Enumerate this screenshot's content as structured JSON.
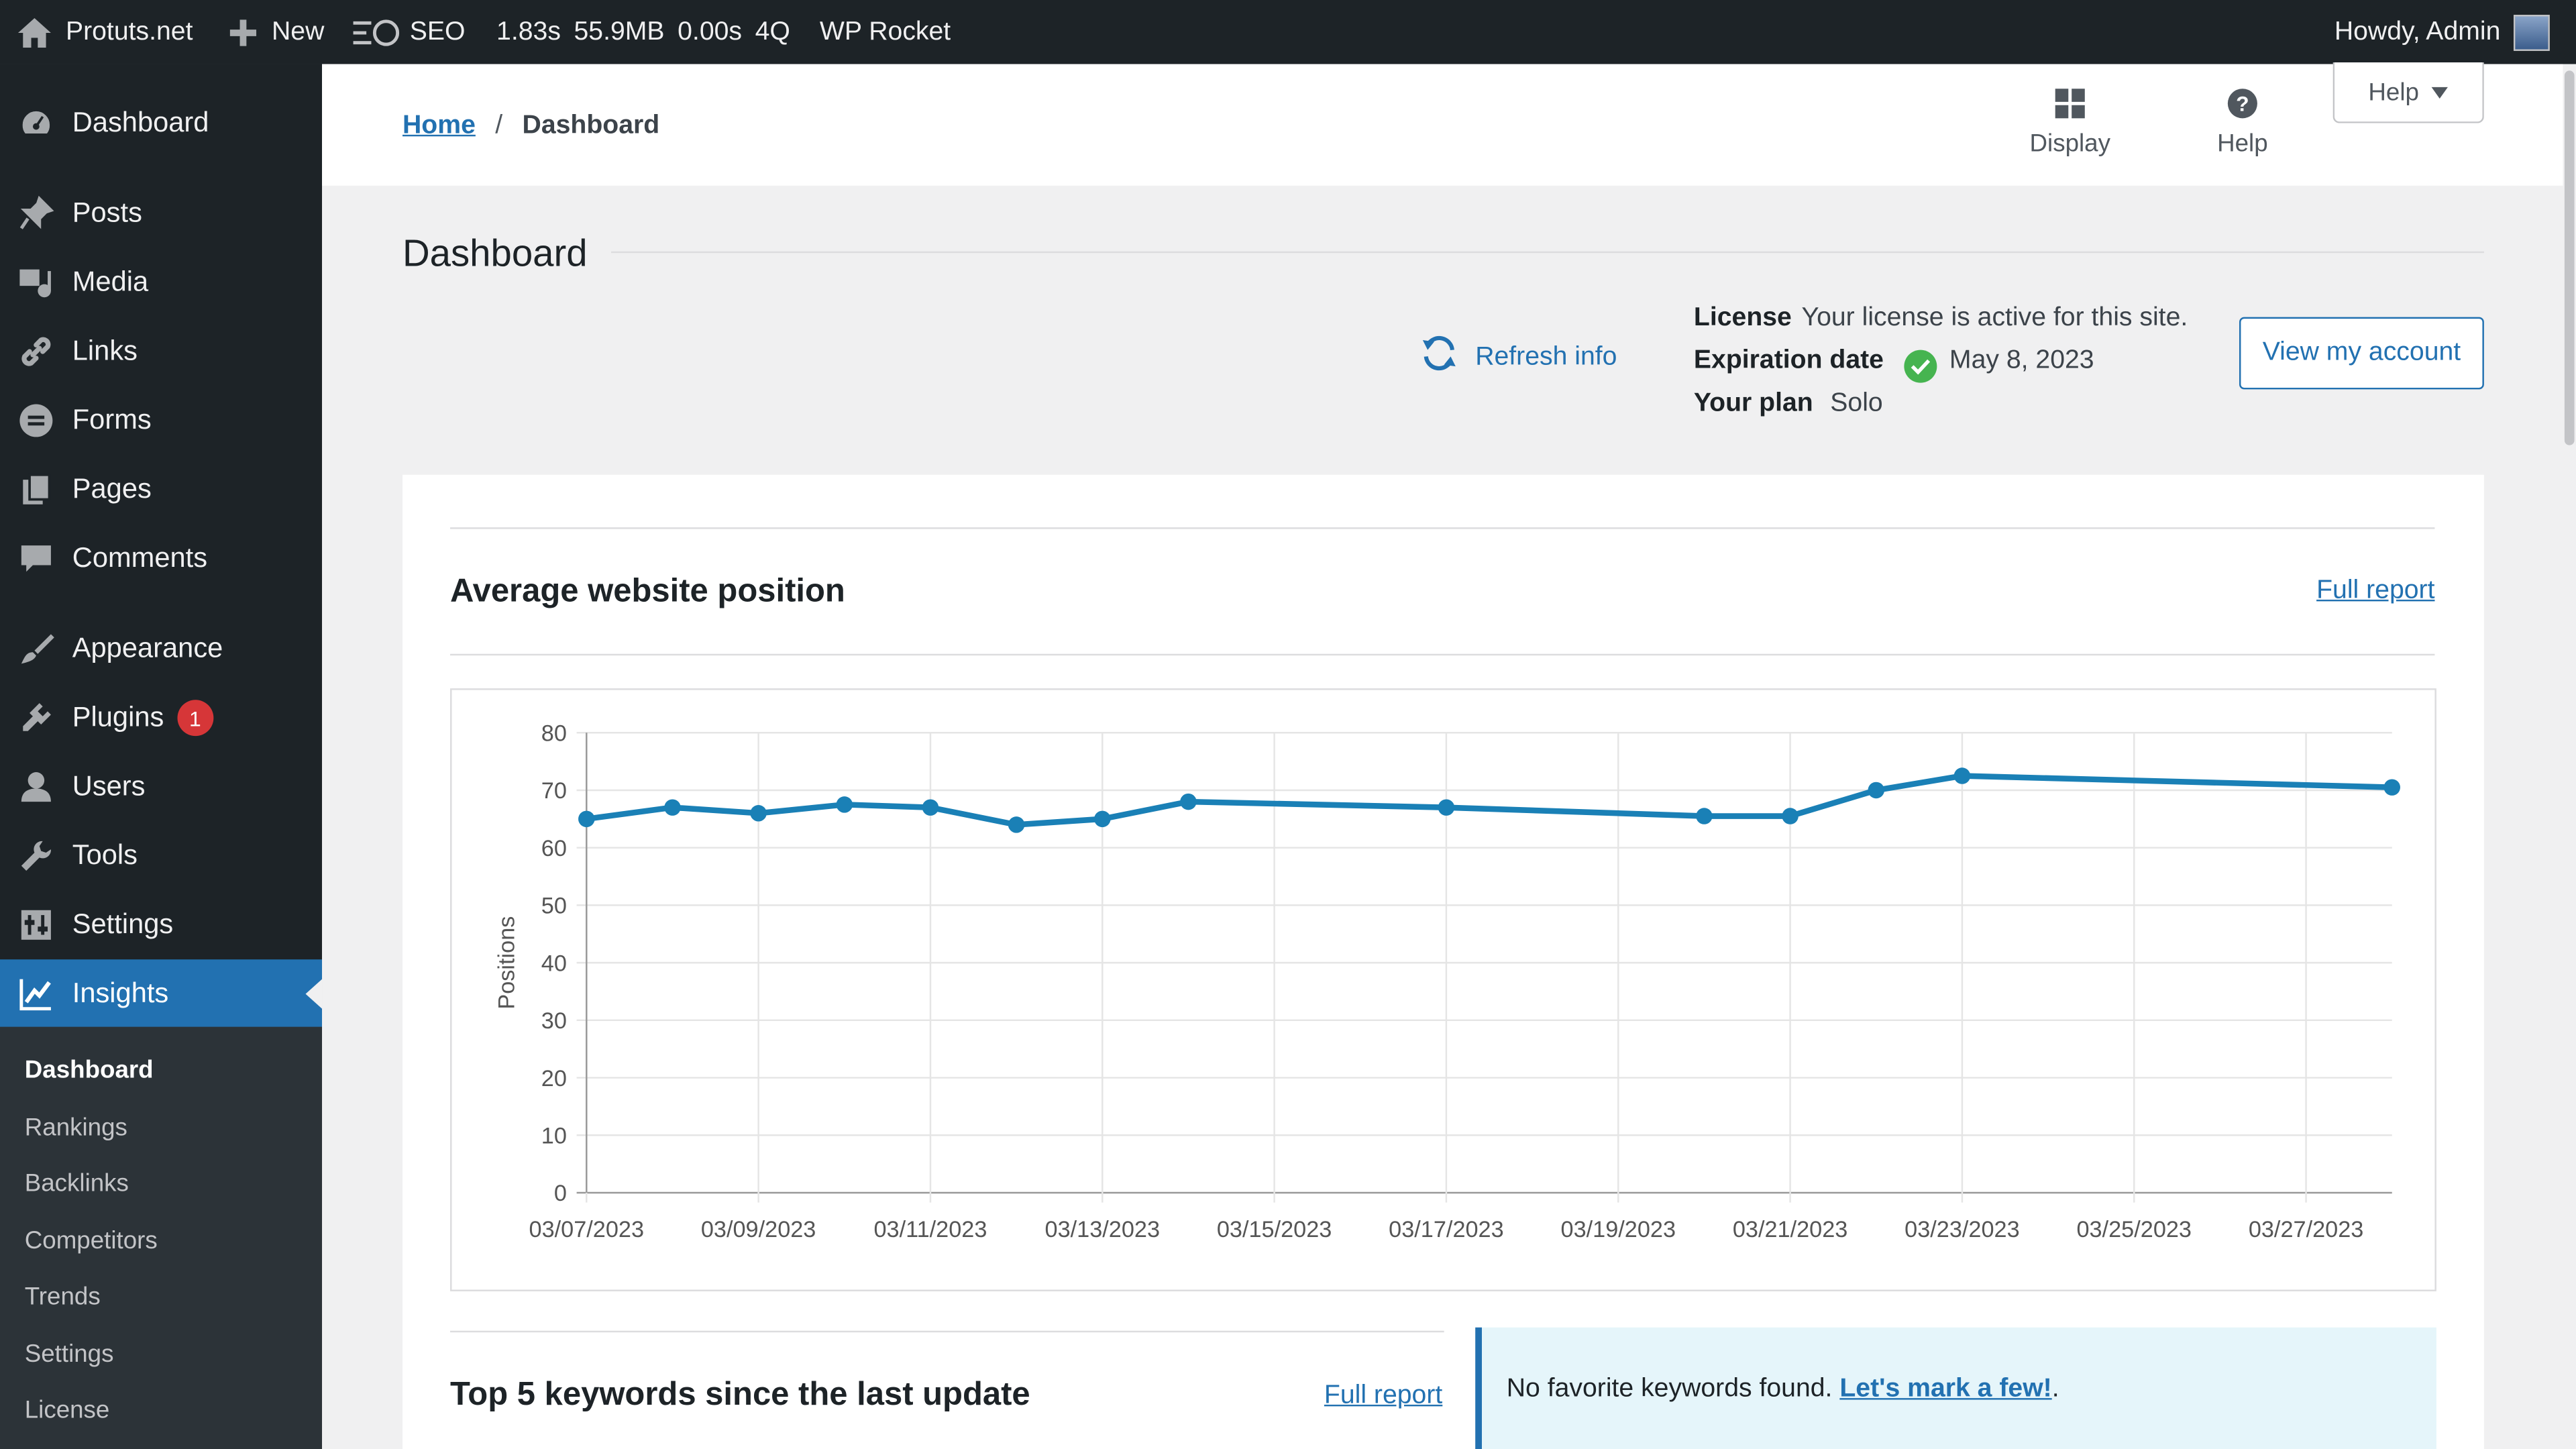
{
  "adminbar": {
    "site_name": "Protuts.net",
    "new_label": "New",
    "seo_label": "SEO",
    "time": "1.83s",
    "memory": "55.9MB",
    "query_time": "0.00s",
    "queries": "4Q",
    "wp_rocket": "WP Rocket",
    "howdy": "Howdy, Admin"
  },
  "sidebar": {
    "items": [
      {
        "label": "Dashboard",
        "icon": "dashboard-icon"
      },
      {
        "label": "Posts",
        "icon": "pin-icon"
      },
      {
        "label": "Media",
        "icon": "media-icon"
      },
      {
        "label": "Links",
        "icon": "link-icon"
      },
      {
        "label": "Forms",
        "icon": "forms-icon"
      },
      {
        "label": "Pages",
        "icon": "pages-icon"
      },
      {
        "label": "Comments",
        "icon": "comment-icon"
      },
      {
        "label": "Appearance",
        "icon": "brush-icon"
      },
      {
        "label": "Plugins",
        "icon": "plugin-icon",
        "badge": "1"
      },
      {
        "label": "Users",
        "icon": "user-icon"
      },
      {
        "label": "Tools",
        "icon": "wrench-icon"
      },
      {
        "label": "Settings",
        "icon": "settings-icon"
      },
      {
        "label": "Insights",
        "icon": "chart-line-icon"
      }
    ],
    "submenu": [
      "Dashboard",
      "Rankings",
      "Backlinks",
      "Competitors",
      "Trends",
      "Settings",
      "License"
    ]
  },
  "header": {
    "breadcrumb_home": "Home",
    "breadcrumb_sep": "/",
    "breadcrumb_current": "Dashboard",
    "display_label": "Display",
    "help_label": "Help",
    "help_tab": "Help"
  },
  "main": {
    "title": "Dashboard",
    "refresh": "Refresh info",
    "license_label": "License",
    "license_value": "Your license is active for this site.",
    "expiration_label": "Expiration date",
    "expiration_value": "May 8, 2023",
    "plan_label": "Your plan",
    "plan_value": "Solo",
    "view_account": "View my account",
    "avg_title": "Average website position",
    "full_report": "Full report",
    "keywords_title": "Top 5 keywords since the last update",
    "keywords_full_report": "Full report",
    "notice_text": "No favorite keywords found.",
    "notice_link": "Let's mark a few!",
    "notice_end": "."
  },
  "colors": {
    "accent": "#2271b1",
    "line": "#1a80b6",
    "sidebar_bg": "#1d2327",
    "badge": "#d63638",
    "check": "#46b450"
  },
  "chart_data": {
    "type": "line",
    "ylabel": "Positions",
    "ylim": [
      0,
      80
    ],
    "yticks": [
      0,
      10,
      20,
      30,
      40,
      50,
      60,
      70,
      80
    ],
    "xtick_labels": [
      "03/07/2023",
      "03/09/2023",
      "03/11/2023",
      "03/13/2023",
      "03/15/2023",
      "03/17/2023",
      "03/19/2023",
      "03/21/2023",
      "03/23/2023",
      "03/25/2023",
      "03/27/2023"
    ],
    "grid": true,
    "series": [
      {
        "x": [
          "03/07/2023",
          "03/08/2023",
          "03/09/2023",
          "03/10/2023",
          "03/11/2023",
          "03/12/2023",
          "03/13/2023",
          "03/14/2023",
          "03/17/2023",
          "03/20/2023",
          "03/21/2023",
          "03/22/2023",
          "03/23/2023",
          "03/28/2023"
        ],
        "values": [
          65,
          67,
          66,
          67.5,
          67,
          64,
          65,
          68,
          67,
          65.5,
          65.5,
          70,
          72.5,
          70.5
        ]
      }
    ]
  }
}
